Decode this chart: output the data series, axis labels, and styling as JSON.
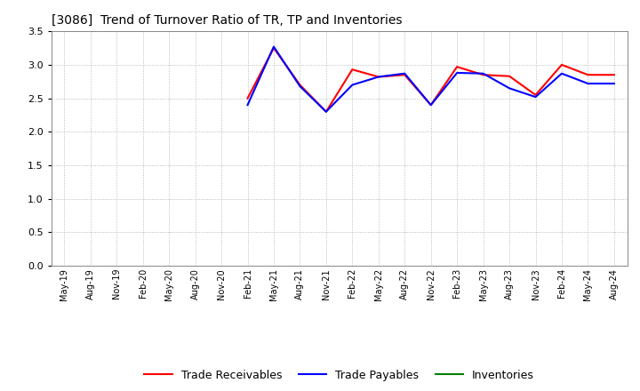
{
  "title": "[3086]  Trend of Turnover Ratio of TR, TP and Inventories",
  "x_labels": [
    "May-19",
    "Aug-19",
    "Nov-19",
    "Feb-20",
    "May-20",
    "Aug-20",
    "Nov-20",
    "Feb-21",
    "May-21",
    "Aug-21",
    "Nov-21",
    "Feb-22",
    "May-22",
    "Aug-22",
    "Nov-22",
    "Feb-23",
    "May-23",
    "Aug-23",
    "Nov-23",
    "Feb-24",
    "May-24",
    "Aug-24"
  ],
  "trade_receivables": [
    null,
    null,
    null,
    null,
    null,
    null,
    null,
    2.5,
    3.25,
    2.7,
    2.3,
    2.93,
    2.82,
    2.85,
    2.4,
    2.97,
    2.85,
    2.83,
    2.55,
    3.0,
    2.85,
    2.85
  ],
  "trade_payables": [
    null,
    null,
    null,
    null,
    null,
    null,
    null,
    2.4,
    3.27,
    2.68,
    2.3,
    2.7,
    2.82,
    2.87,
    2.4,
    2.88,
    2.87,
    2.65,
    2.52,
    2.87,
    2.72,
    2.72
  ],
  "inventories": [
    null,
    null,
    null,
    null,
    null,
    null,
    null,
    null,
    null,
    null,
    null,
    null,
    null,
    null,
    null,
    null,
    null,
    null,
    null,
    null,
    null,
    null
  ],
  "tr_color": "#ff0000",
  "tp_color": "#0000ff",
  "inv_color": "#008000",
  "ylim": [
    0,
    3.5
  ],
  "yticks": [
    0.0,
    0.5,
    1.0,
    1.5,
    2.0,
    2.5,
    3.0,
    3.5
  ],
  "background_color": "#ffffff",
  "grid_color": "#aaaaaa",
  "legend_labels": [
    "Trade Receivables",
    "Trade Payables",
    "Inventories"
  ],
  "figsize": [
    7.2,
    4.4
  ],
  "dpi": 100
}
